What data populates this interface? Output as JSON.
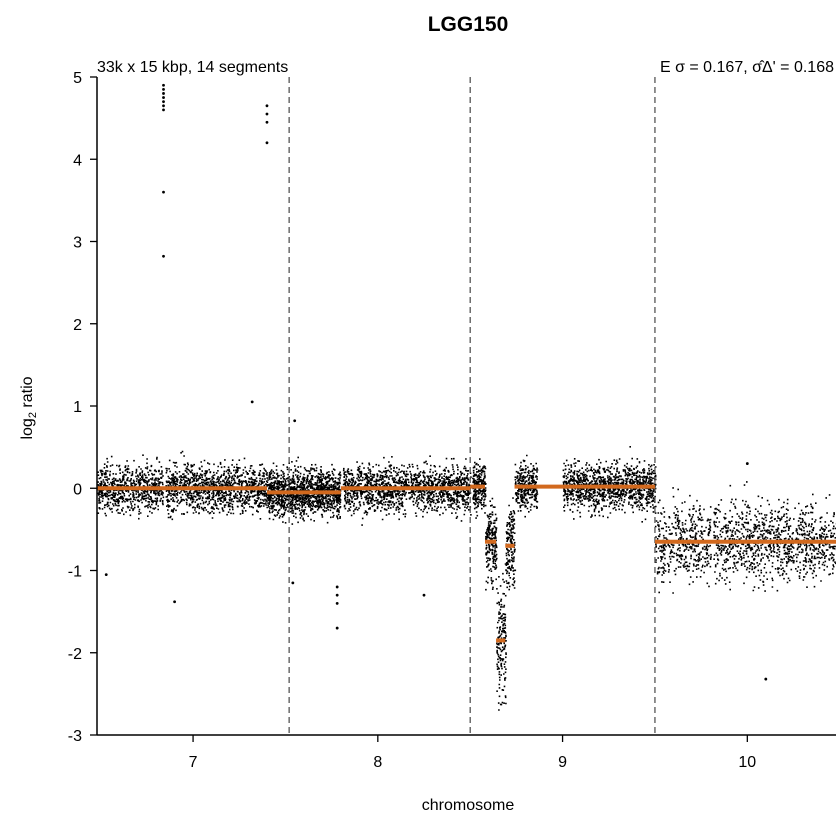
{
  "chart_data": {
    "type": "scatter",
    "title": "LGG150",
    "subtitle_left": "33k x 15 kbp, 14 segments",
    "subtitle_right": "E σ = 0.167, σ̂Δ' = 0.168",
    "xlabel": "chromosome",
    "ylabel": "log2 ratio",
    "xlim": [
      6.48,
      10.48
    ],
    "ylim": [
      -3,
      5
    ],
    "x_ticks": [
      7,
      8,
      9,
      10
    ],
    "y_ticks": [
      5,
      4,
      3,
      2,
      1,
      0,
      -1,
      -2,
      -3
    ],
    "chromosome_boundaries": [
      7.52,
      8.5,
      9.5
    ],
    "grid": false,
    "point_color": "#000000",
    "segment_color": "#d2691e",
    "segments": [
      {
        "x_start": 6.48,
        "x_end": 7.4,
        "value": 0.0
      },
      {
        "x_start": 7.4,
        "x_end": 7.8,
        "value": -0.05
      },
      {
        "x_start": 7.8,
        "x_end": 8.5,
        "value": 0.0
      },
      {
        "x_start": 8.5,
        "x_end": 8.58,
        "value": 0.02
      },
      {
        "x_start": 8.58,
        "x_end": 8.64,
        "value": -0.65
      },
      {
        "x_start": 8.64,
        "x_end": 8.69,
        "value": -1.85
      },
      {
        "x_start": 8.69,
        "x_end": 8.74,
        "value": -0.7
      },
      {
        "x_start": 8.74,
        "x_end": 9.5,
        "value": 0.02
      },
      {
        "x_start": 9.5,
        "x_end": 10.48,
        "value": -0.65
      }
    ],
    "outliers": [
      {
        "x": 6.84,
        "y": 4.9
      },
      {
        "x": 6.84,
        "y": 4.85
      },
      {
        "x": 6.84,
        "y": 4.8
      },
      {
        "x": 6.84,
        "y": 4.75
      },
      {
        "x": 6.84,
        "y": 4.7
      },
      {
        "x": 6.84,
        "y": 4.65
      },
      {
        "x": 6.84,
        "y": 4.6
      },
      {
        "x": 6.84,
        "y": 3.6
      },
      {
        "x": 6.84,
        "y": 2.82
      },
      {
        "x": 7.4,
        "y": 4.65
      },
      {
        "x": 7.4,
        "y": 4.55
      },
      {
        "x": 7.4,
        "y": 4.45
      },
      {
        "x": 7.4,
        "y": 4.2
      },
      {
        "x": 7.32,
        "y": 1.05
      },
      {
        "x": 7.78,
        "y": -1.2
      },
      {
        "x": 7.78,
        "y": -1.3
      },
      {
        "x": 7.78,
        "y": -1.4
      },
      {
        "x": 7.78,
        "y": -1.7
      },
      {
        "x": 6.53,
        "y": -1.05
      },
      {
        "x": 6.9,
        "y": -1.38
      },
      {
        "x": 7.54,
        "y": -1.15
      },
      {
        "x": 7.55,
        "y": 0.82
      },
      {
        "x": 8.25,
        "y": -1.3
      },
      {
        "x": 10.1,
        "y": -2.32
      },
      {
        "x": 10.0,
        "y": 0.3
      }
    ]
  }
}
